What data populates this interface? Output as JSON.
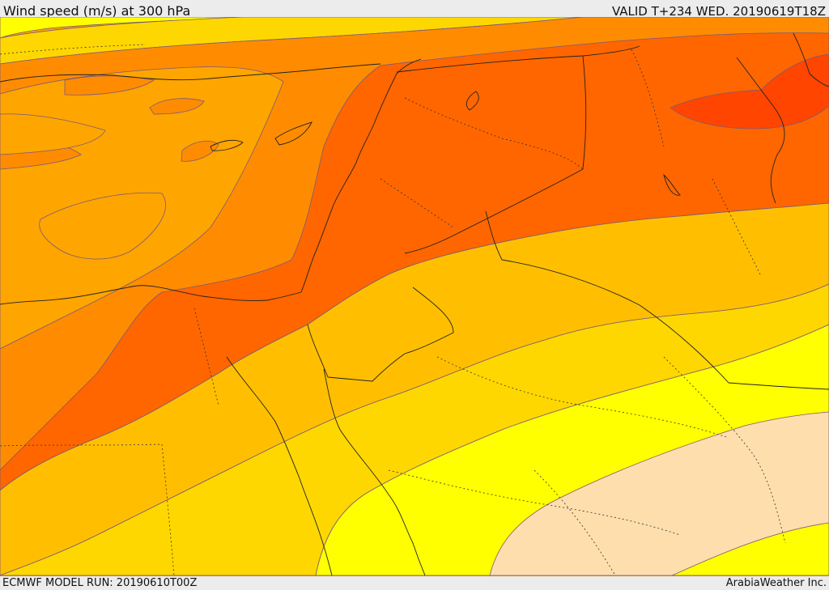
{
  "header": {
    "title": "Wind speed (m/s) at 300 hPa",
    "valid": "VALID T+234 WED. 20190619T18Z"
  },
  "footer": {
    "model_run": "ECMWF MODEL RUN: 20190610T00Z",
    "credit": "ArabiaWeather Inc."
  },
  "map": {
    "bands": [
      {
        "name": "band-wheat",
        "color": "#ffdead"
      },
      {
        "name": "band-yellow",
        "color": "#ffff00"
      },
      {
        "name": "band-gold",
        "color": "#ffd700"
      },
      {
        "name": "band-amber",
        "color": "#ffbf00"
      },
      {
        "name": "band-orange",
        "color": "#ffa500"
      },
      {
        "name": "band-dark-orange",
        "color": "#ff8c00"
      },
      {
        "name": "band-orange-red",
        "color": "#ff6600"
      },
      {
        "name": "band-red-orange",
        "color": "#ff4500"
      }
    ]
  }
}
